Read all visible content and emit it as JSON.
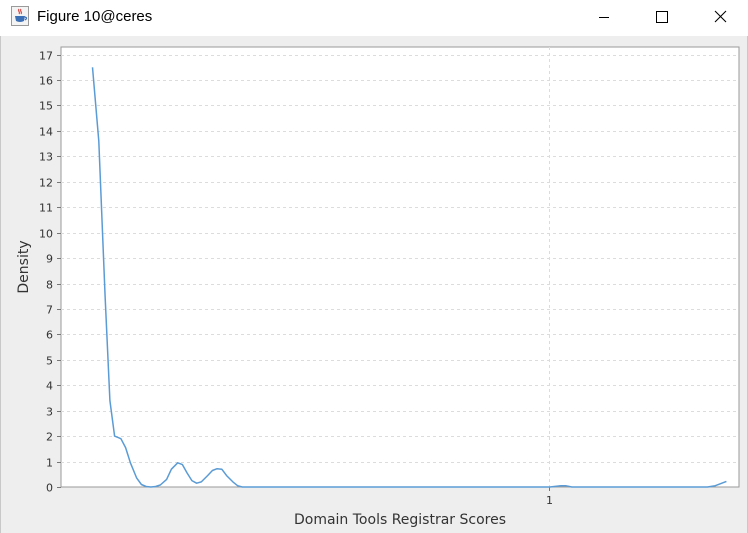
{
  "window": {
    "title": "Figure 10@ceres",
    "icon": "java-cup-icon",
    "controls": [
      "minimize-icon",
      "maximize-icon",
      "close-icon"
    ]
  },
  "chart_data": {
    "type": "line",
    "title": "",
    "xlabel": "Domain Tools Registrar Scores",
    "ylabel": "Density",
    "xlim": [
      -0.07,
      0.36
    ],
    "ylim": [
      0,
      17.3
    ],
    "xticks": [
      1
    ],
    "yticks": [
      0,
      1,
      2,
      3,
      4,
      5,
      6,
      7,
      8,
      9,
      10,
      11,
      12,
      13,
      14,
      15,
      16,
      17
    ],
    "grid": true,
    "color": "#5b9bd5",
    "series": [
      {
        "x": [
          -0.05,
          -0.046,
          -0.042,
          -0.039,
          -0.036,
          -0.032,
          -0.029,
          -0.026,
          -0.022,
          -0.019,
          -0.016,
          -0.013,
          -0.01,
          -0.007,
          -0.003,
          0.0,
          0.004,
          0.007,
          0.01,
          0.013,
          0.016,
          0.019,
          0.023,
          0.026,
          0.029,
          0.032,
          0.035,
          0.039,
          0.042,
          0.045,
          0.05,
          0.06,
          0.1,
          0.15,
          0.2,
          0.24,
          0.247,
          0.25,
          0.254,
          0.26,
          0.3,
          0.34,
          0.345,
          0.352
        ],
        "y": [
          16.5,
          13.6,
          7.5,
          3.4,
          2.0,
          1.9,
          1.55,
          0.95,
          0.35,
          0.1,
          0.02,
          0.0,
          0.02,
          0.08,
          0.3,
          0.7,
          0.95,
          0.88,
          0.55,
          0.25,
          0.15,
          0.2,
          0.45,
          0.65,
          0.72,
          0.7,
          0.45,
          0.2,
          0.05,
          0.0,
          0.0,
          0.0,
          0.0,
          0.0,
          0.0,
          0.0,
          0.05,
          0.05,
          0.0,
          0.0,
          0.0,
          0.0,
          0.05,
          0.22
        ]
      }
    ]
  }
}
